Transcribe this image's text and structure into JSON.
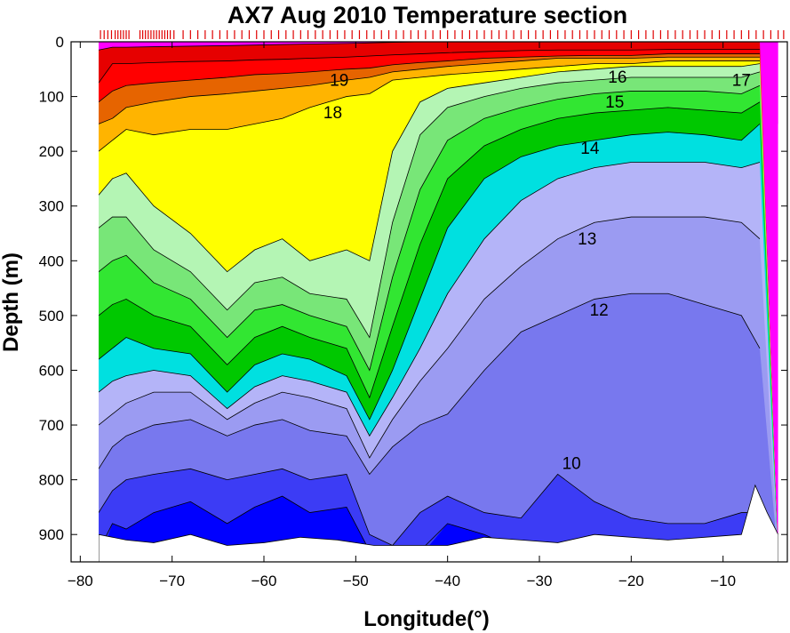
{
  "chart_data": {
    "type": "contour",
    "title": "AX7 Aug 2010 Temperature section",
    "xlabel": "Longitude(°)",
    "ylabel": "Depth (m)",
    "xlim": [
      -81,
      -3
    ],
    "ylim": [
      950,
      0
    ],
    "x_ticks": [
      -80,
      -70,
      -60,
      -50,
      -40,
      -30,
      -20,
      -10
    ],
    "x_tick_labels": [
      "−80",
      "−70",
      "−60",
      "−50",
      "−40",
      "−30",
      "−20",
      "−10"
    ],
    "y_ticks": [
      0,
      100,
      200,
      300,
      400,
      500,
      600,
      700,
      800,
      900
    ],
    "y_tick_labels": [
      "0",
      "100",
      "200",
      "300",
      "400",
      "500",
      "600",
      "700",
      "800",
      "900"
    ],
    "contour_levels": [
      9,
      10,
      11,
      12,
      13,
      14,
      15,
      16,
      17,
      18,
      19,
      20,
      21
    ],
    "level_colors": {
      "below_9": "#0000ff",
      "9-10": "#3c3cf5",
      "10-11": "#7878ee",
      "11-12": "#9b9bf2",
      "12-13": "#b4b4f8",
      "13-14": "#00e0e0",
      "14-15": "#00c800",
      "15-16": "#32e632",
      "16-17": "#78e678",
      "17-18": "#b4f5b4",
      "18-19": "#ffff00",
      "19-20": "#ffb400",
      "20-21": "#e66400",
      "21-25": "#ff0000",
      "25-27": "#e60000",
      "above_27": "#ff00ff"
    },
    "isotherm_depths": {
      "lon": [
        -78,
        -76.5,
        -75,
        -72,
        -68,
        -64,
        -61,
        -58,
        -55,
        -51,
        -48.5,
        -46,
        -43,
        -40,
        -36,
        -32,
        -28,
        -24,
        -20,
        -16,
        -12,
        -8,
        -6,
        -4
      ],
      "t9": [
        950,
        880,
        890,
        860,
        840,
        880,
        850,
        830,
        860,
        850,
        930,
        950,
        940,
        880,
        900,
        930,
        930,
        930,
        930,
        930,
        930,
        930,
        930,
        930
      ],
      "t10": [
        860,
        820,
        800,
        790,
        780,
        800,
        790,
        780,
        800,
        790,
        900,
        920,
        860,
        830,
        860,
        870,
        790,
        840,
        870,
        880,
        880,
        860,
        860,
        950
      ],
      "t11": [
        780,
        740,
        720,
        700,
        690,
        720,
        700,
        690,
        710,
        720,
        790,
        740,
        700,
        680,
        600,
        530,
        500,
        470,
        460,
        460,
        480,
        500,
        560,
        950
      ],
      "t12": [
        700,
        680,
        660,
        640,
        640,
        690,
        660,
        640,
        650,
        670,
        760,
        690,
        620,
        560,
        470,
        410,
        360,
        330,
        320,
        320,
        320,
        330,
        360,
        950
      ],
      "t13": [
        640,
        620,
        610,
        600,
        610,
        670,
        630,
        610,
        620,
        640,
        720,
        650,
        560,
        460,
        360,
        290,
        250,
        230,
        220,
        220,
        220,
        230,
        220,
        950
      ],
      "t14": [
        580,
        560,
        540,
        560,
        570,
        640,
        590,
        570,
        580,
        610,
        690,
        600,
        470,
        340,
        250,
        210,
        190,
        180,
        170,
        165,
        170,
        180,
        150,
        950
      ],
      "t15": [
        500,
        480,
        470,
        500,
        520,
        590,
        540,
        520,
        540,
        560,
        650,
        520,
        370,
        250,
        190,
        160,
        140,
        130,
        125,
        120,
        125,
        130,
        110,
        950
      ],
      "t16": [
        420,
        400,
        390,
        440,
        470,
        540,
        490,
        480,
        500,
        520,
        600,
        430,
        270,
        180,
        140,
        120,
        105,
        95,
        90,
        90,
        90,
        95,
        80,
        950
      ],
      "t17": [
        340,
        320,
        320,
        380,
        420,
        490,
        440,
        430,
        460,
        470,
        540,
        330,
        170,
        120,
        100,
        85,
        75,
        70,
        65,
        65,
        65,
        65,
        55,
        950
      ],
      "t18": [
        280,
        250,
        240,
        300,
        350,
        420,
        380,
        360,
        400,
        380,
        400,
        200,
        110,
        85,
        75,
        65,
        55,
        50,
        45,
        45,
        45,
        45,
        40,
        950
      ],
      "t19": [
        200,
        180,
        160,
        170,
        160,
        160,
        150,
        140,
        120,
        100,
        95,
        70,
        65,
        60,
        55,
        50,
        45,
        40,
        40,
        35,
        35,
        35,
        35,
        950
      ],
      "t20": [
        150,
        140,
        120,
        110,
        100,
        95,
        90,
        85,
        80,
        70,
        65,
        55,
        50,
        45,
        40,
        35,
        30,
        30,
        30,
        28,
        28,
        28,
        28,
        950
      ],
      "t21": [
        110,
        90,
        80,
        75,
        70,
        65,
        60,
        58,
        55,
        50,
        48,
        42,
        38,
        35,
        30,
        28,
        26,
        25,
        25,
        22,
        22,
        22,
        22,
        950
      ],
      "t25": [
        75,
        40,
        40,
        38,
        36,
        35,
        33,
        32,
        30,
        28,
        26,
        24,
        22,
        20,
        18,
        16,
        15,
        15,
        15,
        14,
        14,
        14,
        14,
        950
      ],
      "t27": [
        15,
        10,
        10,
        9,
        8,
        7,
        6,
        5,
        4,
        3,
        2,
        1,
        0,
        0,
        0,
        0,
        0,
        0,
        0,
        0,
        0,
        0,
        0,
        950
      ]
    },
    "bottom_depth": {
      "lon": [
        -78,
        -75,
        -72,
        -68,
        -64,
        -60,
        -56,
        -52,
        -48,
        -44,
        -40,
        -36,
        -32,
        -28,
        -24,
        -20,
        -16,
        -12,
        -8,
        -6.5,
        -5.2,
        -4
      ],
      "depth": [
        900,
        910,
        915,
        900,
        920,
        915,
        905,
        910,
        920,
        920,
        920,
        905,
        910,
        915,
        900,
        905,
        910,
        905,
        900,
        810,
        860,
        900
      ]
    },
    "isotherm_labels": [
      {
        "text": "19",
        "lon": -51.8,
        "depth": 80
      },
      {
        "text": "18",
        "lon": -52.5,
        "depth": 140
      },
      {
        "text": "17",
        "lon": -8,
        "depth": 80
      },
      {
        "text": "16",
        "lon": -21.5,
        "depth": 75
      },
      {
        "text": "15",
        "lon": -21.8,
        "depth": 120
      },
      {
        "text": "14",
        "lon": -24.5,
        "depth": 205
      },
      {
        "text": "13",
        "lon": -24.8,
        "depth": 370
      },
      {
        "text": "12",
        "lon": -23.5,
        "depth": 500
      },
      {
        "text": "10",
        "lon": -26.5,
        "depth": 780
      }
    ],
    "cast_longitudes_note": "XBT cast marks along top",
    "cast_longitudes": [
      -77.8,
      -77.4,
      -77.0,
      -76.6,
      -76.2,
      -75.9,
      -75.6,
      -75.3,
      -75.0,
      -74.7,
      -73.5,
      -73.2,
      -72.9,
      -72.6,
      -72.3,
      -72.0,
      -71.7,
      -71.4,
      -71.1,
      -70.8,
      -70.5,
      -70.2,
      -69.8,
      -68.8,
      -68.0,
      -67.2,
      -66.4,
      -65.6,
      -64.8,
      -64.0,
      -63.2,
      -62.4,
      -61.6,
      -60.8,
      -60.0,
      -59.2,
      -58.4,
      -57.6,
      -56.8,
      -56.0,
      -55.2,
      -54.4,
      -53.6,
      -52.8,
      -52.0,
      -51.2,
      -50.4,
      -49.6,
      -48.8,
      -48.0,
      -47.2,
      -46.4,
      -45.6,
      -44.8,
      -44.0,
      -43.2,
      -42.4,
      -41.6,
      -40.8,
      -40.0,
      -39.2,
      -38.4,
      -37.6,
      -36.8,
      -36.0,
      -35.2,
      -34.4,
      -33.6,
      -32.8,
      -32.0,
      -31.2,
      -30.4,
      -29.6,
      -28.8,
      -28.0,
      -27.2,
      -26.4,
      -25.6,
      -24.8,
      -24.0,
      -23.2,
      -22.4,
      -21.6,
      -20.8,
      -20.0,
      -19.2,
      -18.4,
      -17.6,
      -16.8,
      -16.0,
      -15.2,
      -14.4,
      -13.6,
      -12.8,
      -12.0,
      -11.2,
      -10.4,
      -9.6,
      -8.8,
      -8.0,
      -7.2,
      -6.4,
      -5.6,
      -4.8,
      -4.0,
      -3.4
    ]
  }
}
